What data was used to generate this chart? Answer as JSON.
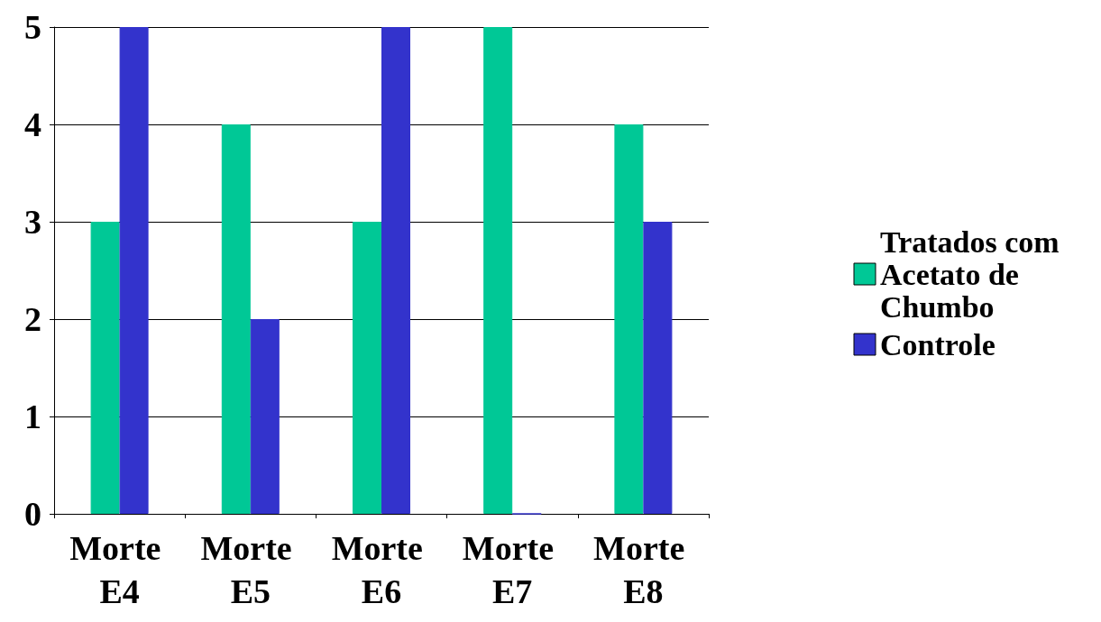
{
  "chart_data": {
    "type": "bar",
    "categories": [
      "Morte E4",
      "Morte E5",
      "Morte E6",
      "Morte E7",
      "Morte E8"
    ],
    "series": [
      {
        "name": "Tratados com Acetato de Chumbo",
        "color": "#00c896",
        "values": [
          3,
          4,
          3,
          5,
          4
        ]
      },
      {
        "name": "Controle",
        "color": "#3333cc",
        "values": [
          5,
          2,
          5,
          0,
          3
        ]
      }
    ],
    "ylim": [
      0,
      5
    ],
    "yticks": [
      0,
      1,
      2,
      3,
      4,
      5
    ],
    "grid": "y",
    "legend": "right"
  }
}
